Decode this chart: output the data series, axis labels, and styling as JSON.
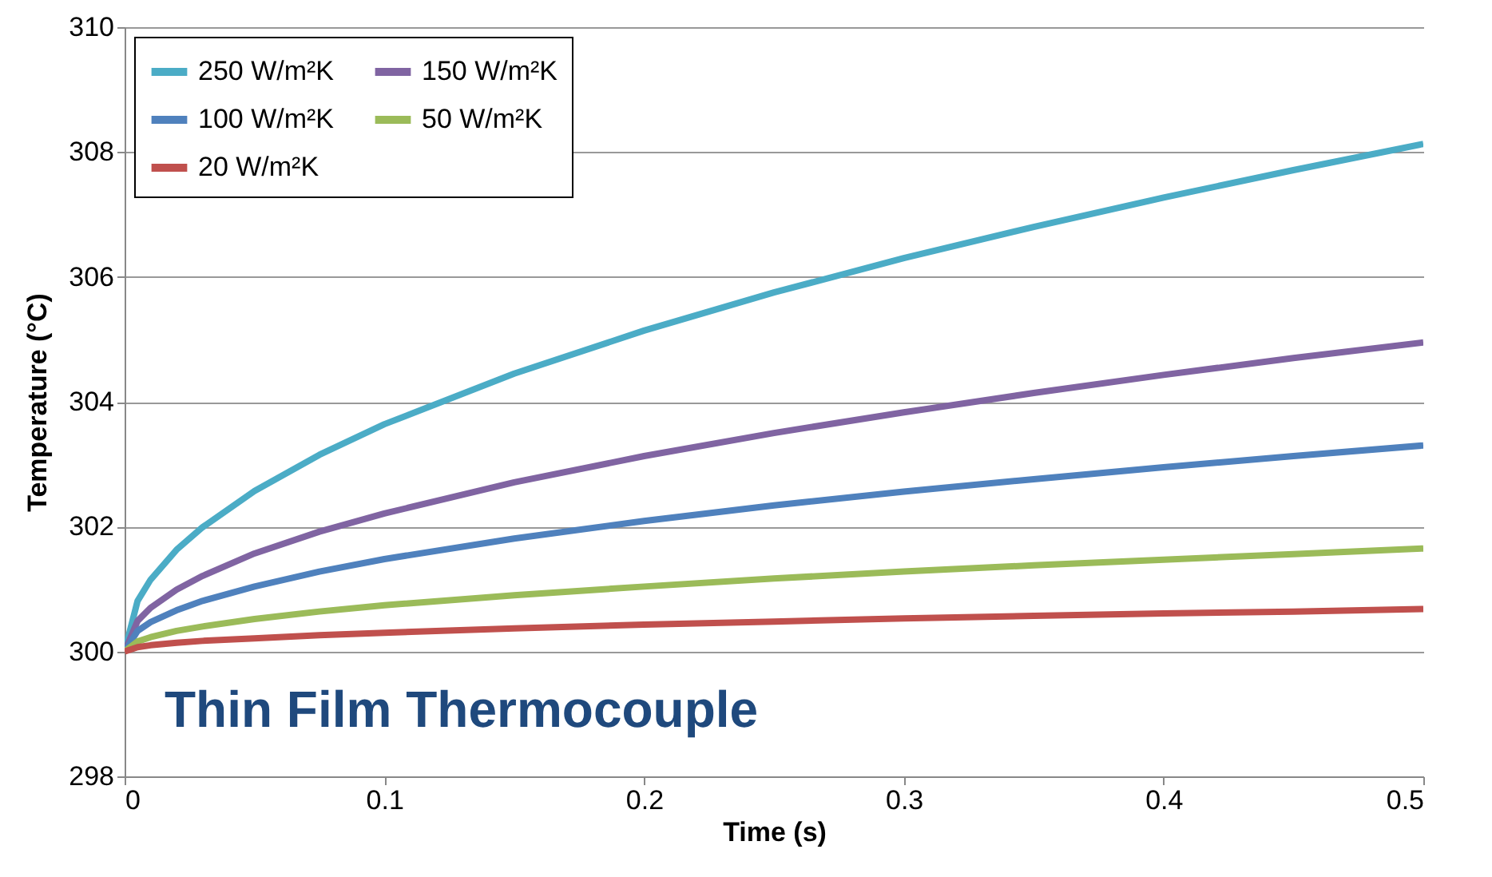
{
  "chart_data": {
    "type": "line",
    "xlabel": "Time (s)",
    "ylabel": "Temperature (°C)",
    "x": [
      0,
      0.005,
      0.01,
      0.02,
      0.03,
      0.05,
      0.075,
      0.1,
      0.15,
      0.2,
      0.25,
      0.3,
      0.35,
      0.4,
      0.45,
      0.5
    ],
    "series": [
      {
        "name": "250 W/m²K",
        "color": "#4bacc6",
        "values": [
          300,
          300.81,
          301.15,
          301.63,
          301.99,
          302.57,
          303.15,
          303.64,
          304.45,
          305.14,
          305.75,
          306.3,
          306.8,
          307.27,
          307.71,
          308.13
        ]
      },
      {
        "name": "150 W/m²K",
        "color": "#8064a2",
        "values": [
          300,
          300.49,
          300.7,
          300.99,
          301.21,
          301.57,
          301.92,
          302.21,
          302.71,
          303.13,
          303.5,
          303.83,
          304.14,
          304.43,
          304.7,
          304.95
        ]
      },
      {
        "name": "100 W/m²K",
        "color": "#4f81bd",
        "values": [
          300,
          300.33,
          300.47,
          300.66,
          300.81,
          301.04,
          301.28,
          301.48,
          301.81,
          302.09,
          302.34,
          302.56,
          302.76,
          302.95,
          303.13,
          303.3
        ]
      },
      {
        "name": "50 W/m²K",
        "color": "#9bbb59",
        "values": [
          300,
          300.16,
          300.23,
          300.33,
          300.4,
          300.52,
          300.64,
          300.74,
          300.9,
          301.04,
          301.17,
          301.28,
          301.38,
          301.47,
          301.56,
          301.65
        ]
      },
      {
        "name": "20 W/m²K",
        "color": "#c0504d",
        "values": [
          300,
          300.07,
          300.1,
          300.14,
          300.17,
          300.21,
          300.26,
          300.3,
          300.37,
          300.43,
          300.48,
          300.53,
          300.57,
          300.61,
          300.64,
          300.68
        ]
      }
    ],
    "xlim": [
      0,
      0.5
    ],
    "xticks": [
      0,
      0.1,
      0.2,
      0.3,
      0.4,
      0.5
    ],
    "ylim": [
      298,
      310
    ],
    "yticks": [
      298,
      300,
      302,
      304,
      306,
      308,
      310
    ],
    "grid": "y",
    "legend": "top left",
    "marker": "none",
    "line_style": "solid",
    "annotations": [
      "Thin Film Thermocouple"
    ]
  }
}
